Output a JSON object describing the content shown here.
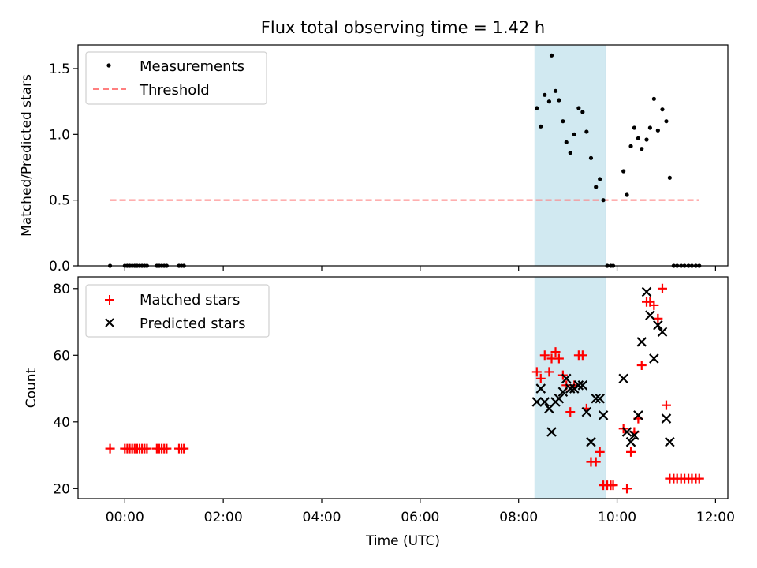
{
  "title": "Flux total observing time = 1.42 h",
  "xlabel": "Time (UTC)",
  "x_tick_labels": [
    "00:00",
    "02:00",
    "04:00",
    "06:00",
    "08:00",
    "10:00",
    "12:00"
  ],
  "colors": {
    "measurements": "#000000",
    "threshold": "#ff7f7f",
    "matched": "#ff0000",
    "predicted": "#000000",
    "span": "#add8e6"
  },
  "chart_data": [
    {
      "type": "scatter",
      "ylabel": "Matched/Predicted stars",
      "x_units": "hours (UTC)",
      "xlim": [
        -0.95,
        12.25
      ],
      "ylim": [
        0,
        1.68
      ],
      "y_ticks": [
        0.0,
        0.5,
        1.0,
        1.5
      ],
      "y_tick_labels": [
        "0.0",
        "0.5",
        "1.0",
        "1.5"
      ],
      "highlight_span": [
        8.33,
        9.77
      ],
      "legend": {
        "placement": "upper-left",
        "entries": [
          "Measurements",
          "Threshold"
        ]
      },
      "series": [
        {
          "name": "Measurements",
          "marker": "dot",
          "x": [
            -0.3,
            0.0,
            0.05,
            0.1,
            0.15,
            0.2,
            0.25,
            0.3,
            0.35,
            0.4,
            0.45,
            0.65,
            0.7,
            0.75,
            0.8,
            0.85,
            1.1,
            1.15,
            1.2,
            8.37,
            8.45,
            8.53,
            8.62,
            8.67,
            8.75,
            8.82,
            8.9,
            8.97,
            9.05,
            9.13,
            9.22,
            9.3,
            9.38,
            9.47,
            9.57,
            9.65,
            9.72,
            9.8,
            9.87,
            9.92,
            10.13,
            10.2,
            10.28,
            10.35,
            10.43,
            10.5,
            10.6,
            10.67,
            10.75,
            10.83,
            10.92,
            11.0,
            11.07,
            11.15,
            11.22,
            11.3,
            11.37,
            11.45,
            11.52,
            11.6,
            11.67
          ],
          "y": [
            0,
            0,
            0,
            0,
            0,
            0,
            0,
            0,
            0,
            0,
            0,
            0,
            0,
            0,
            0,
            0,
            0,
            0,
            0,
            1.2,
            1.06,
            1.3,
            1.25,
            1.6,
            1.33,
            1.26,
            1.1,
            0.94,
            0.86,
            1.0,
            1.2,
            1.17,
            1.02,
            0.82,
            0.6,
            0.66,
            0.5,
            0.0,
            0.0,
            0.0,
            0.72,
            0.54,
            0.91,
            1.05,
            0.97,
            0.89,
            0.96,
            1.05,
            1.27,
            1.03,
            1.19,
            1.1,
            0.67,
            0.0,
            0.0,
            0.0,
            0.0,
            0.0,
            0.0,
            0.0,
            0.0
          ]
        },
        {
          "name": "Threshold",
          "marker": "dashed-line",
          "x": [
            -0.3,
            11.67
          ],
          "y": [
            0.5,
            0.5
          ]
        }
      ]
    },
    {
      "type": "scatter",
      "ylabel": "Count",
      "x_units": "hours (UTC)",
      "xlim": [
        -0.95,
        12.25
      ],
      "ylim": [
        17,
        83.5
      ],
      "y_ticks": [
        20,
        40,
        60,
        80
      ],
      "y_tick_labels": [
        "20",
        "40",
        "60",
        "80"
      ],
      "highlight_span": [
        8.33,
        9.77
      ],
      "legend": {
        "placement": "upper-left",
        "entries": [
          "Matched stars",
          "Predicted stars"
        ]
      },
      "series": [
        {
          "name": "Matched stars",
          "marker": "plus",
          "x": [
            -0.3,
            0.0,
            0.05,
            0.1,
            0.15,
            0.2,
            0.25,
            0.3,
            0.35,
            0.4,
            0.45,
            0.65,
            0.7,
            0.75,
            0.8,
            0.85,
            1.1,
            1.15,
            1.2,
            8.37,
            8.45,
            8.53,
            8.62,
            8.67,
            8.75,
            8.82,
            8.9,
            8.97,
            9.05,
            9.13,
            9.22,
            9.3,
            9.38,
            9.47,
            9.57,
            9.65,
            9.72,
            9.8,
            9.87,
            9.92,
            10.13,
            10.2,
            10.28,
            10.35,
            10.43,
            10.5,
            10.6,
            10.67,
            10.75,
            10.83,
            10.92,
            11.0,
            11.07,
            11.15,
            11.22,
            11.3,
            11.37,
            11.45,
            11.52,
            11.6,
            11.67
          ],
          "y": [
            32,
            32,
            32,
            32,
            32,
            32,
            32,
            32,
            32,
            32,
            32,
            32,
            32,
            32,
            32,
            32,
            32,
            32,
            32,
            55,
            53,
            60,
            55,
            59,
            61,
            59,
            54,
            51,
            43,
            51,
            60,
            60,
            44,
            28,
            28,
            31,
            21,
            21,
            21,
            21,
            38,
            20,
            31,
            37,
            41,
            57,
            76,
            76,
            75,
            71,
            80,
            45,
            23,
            23,
            23,
            23,
            23,
            23,
            23,
            23,
            23
          ]
        },
        {
          "name": "Predicted stars",
          "marker": "x",
          "x": [
            8.37,
            8.45,
            8.53,
            8.62,
            8.67,
            8.75,
            8.82,
            8.9,
            8.97,
            9.05,
            9.13,
            9.22,
            9.3,
            9.38,
            9.47,
            9.57,
            9.65,
            9.72,
            10.13,
            10.2,
            10.28,
            10.35,
            10.43,
            10.5,
            10.6,
            10.67,
            10.75,
            10.83,
            10.92,
            11.0,
            11.07
          ],
          "y": [
            46,
            50,
            46,
            44,
            37,
            46,
            47,
            49,
            53,
            50,
            50,
            51,
            51,
            43,
            34,
            47,
            47,
            42,
            53,
            37,
            34,
            36,
            42,
            64,
            79,
            72,
            59,
            69,
            67,
            41,
            34
          ]
        }
      ]
    }
  ]
}
